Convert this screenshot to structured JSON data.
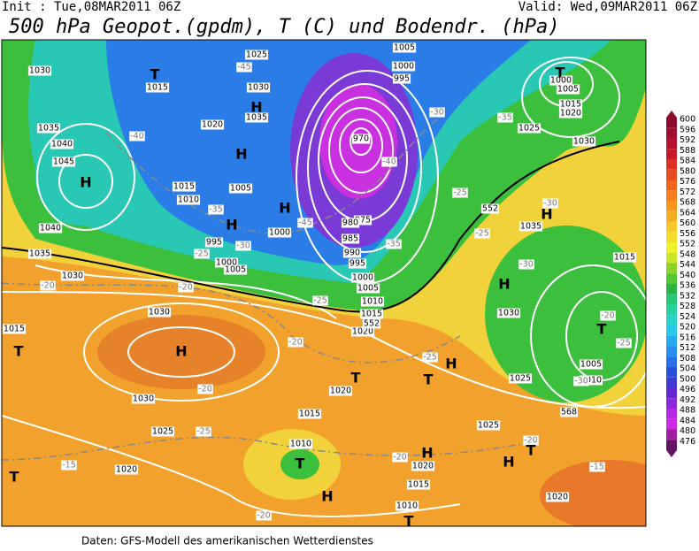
{
  "header": {
    "init": "Init : Tue,08MAR2011 06Z",
    "valid": "Valid: Wed,09MAR2011 06Z",
    "title": "500 hPa Geopot.(gpdm), T (C) und Bodendr. (hPa)"
  },
  "colorbar": {
    "ticks": [
      600,
      596,
      592,
      588,
      584,
      580,
      576,
      572,
      568,
      564,
      560,
      556,
      552,
      548,
      544,
      540,
      536,
      532,
      528,
      524,
      520,
      516,
      512,
      508,
      504,
      500,
      496,
      492,
      488,
      484,
      480,
      476
    ],
    "colors": [
      "#8c0a2e",
      "#a00f2e",
      "#b4142d",
      "#c8192b",
      "#dc3228",
      "#e64b23",
      "#f0641e",
      "#f57d1e",
      "#f5961e",
      "#f5af23",
      "#f5c828",
      "#f5dc28",
      "#f0f028",
      "#c8e628",
      "#8cd228",
      "#50c832",
      "#28b446",
      "#28c878",
      "#28d2a0",
      "#28d2c8",
      "#28c8e6",
      "#28aaf0",
      "#288cf0",
      "#286ee6",
      "#2850dc",
      "#3c3cd2",
      "#6428d2",
      "#8c28dc",
      "#b428e6",
      "#d228e6",
      "#a01ea0",
      "#641464"
    ]
  },
  "map": {
    "centers": [
      "H",
      "H",
      "H",
      "H",
      "H",
      "H",
      "H",
      "H",
      "H",
      "H",
      "H",
      "H",
      "T",
      "T",
      "T",
      "T",
      "T",
      "T",
      "T",
      "T",
      "T",
      "T"
    ],
    "isobar_labels": [
      "1030",
      "1035",
      "1040",
      "1045",
      "1040",
      "1035",
      "1030",
      "1015",
      "1030",
      "1030",
      "1025",
      "1020",
      "1020",
      "1015",
      "1010",
      "1025",
      "1020",
      "1015",
      "1010",
      "1020",
      "1025",
      "1010",
      "1005",
      "1030",
      "1015",
      "1035",
      "1030",
      "1025",
      "1020",
      "1015",
      "1005",
      "1000",
      "1025",
      "1030",
      "1035",
      "1020",
      "1015",
      "995",
      "1000",
      "1005",
      "1015",
      "1010",
      "1005",
      "1000",
      "975",
      "980",
      "985",
      "990",
      "995",
      "1000",
      "1005",
      "1010",
      "1015",
      "1020",
      "1005",
      "1000",
      "995",
      "970"
    ],
    "temperature_labels": [
      "-45",
      "-40",
      "-35",
      "-30",
      "-25",
      "-20",
      "-20",
      "-20",
      "-20",
      "-25",
      "-15",
      "-20",
      "-30",
      "-35",
      "-25",
      "-25",
      "-30",
      "-30",
      "-25",
      "-25",
      "-20",
      "-15",
      "-20",
      "-20",
      "-35",
      "-40",
      "-45",
      "-30",
      "-25"
    ],
    "geopotential_labels": [
      "552",
      "552",
      "568"
    ]
  },
  "footer": "Daten: GFS-Modell des amerikanischen Wetterdienstes"
}
